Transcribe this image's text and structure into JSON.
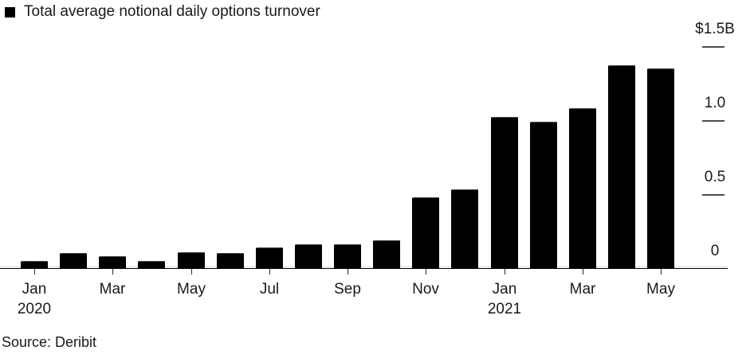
{
  "chart_data": {
    "type": "bar",
    "title": "Total average notional daily options turnover",
    "unit": "USD billions per day",
    "categories": [
      "Jan 2020",
      "Feb 2020",
      "Mar 2020",
      "Apr 2020",
      "May 2020",
      "Jun 2020",
      "Jul 2020",
      "Aug 2020",
      "Sep 2020",
      "Oct 2020",
      "Nov 2020",
      "Dec 2020",
      "Jan 2021",
      "Feb 2021",
      "Mar 2021",
      "Apr 2021",
      "May 2021"
    ],
    "values": [
      0.05,
      0.1,
      0.08,
      0.05,
      0.11,
      0.1,
      0.14,
      0.16,
      0.16,
      0.19,
      0.48,
      0.53,
      1.02,
      0.99,
      1.08,
      1.37,
      1.35
    ],
    "ylim": [
      0,
      1.5
    ],
    "y_ticks": [
      {
        "value": 1.5,
        "label": "$1.5B"
      },
      {
        "value": 1.0,
        "label": "1.0"
      },
      {
        "value": 0.5,
        "label": "0.5"
      },
      {
        "value": 0,
        "label": "0"
      }
    ],
    "x_ticks": [
      {
        "index": 0,
        "label": "Jan",
        "year": "2020"
      },
      {
        "index": 2,
        "label": "Mar"
      },
      {
        "index": 4,
        "label": "May"
      },
      {
        "index": 6,
        "label": "Jul"
      },
      {
        "index": 8,
        "label": "Sep"
      },
      {
        "index": 10,
        "label": "Nov"
      },
      {
        "index": 12,
        "label": "Jan",
        "year": "2021"
      },
      {
        "index": 14,
        "label": "Mar"
      },
      {
        "index": 16,
        "label": "May"
      }
    ],
    "bar_color": "#000000",
    "legend_position": "top-left",
    "y_axis_side": "right",
    "grid": "dotted zero line only"
  },
  "source": {
    "label": "Source: Deribit"
  }
}
